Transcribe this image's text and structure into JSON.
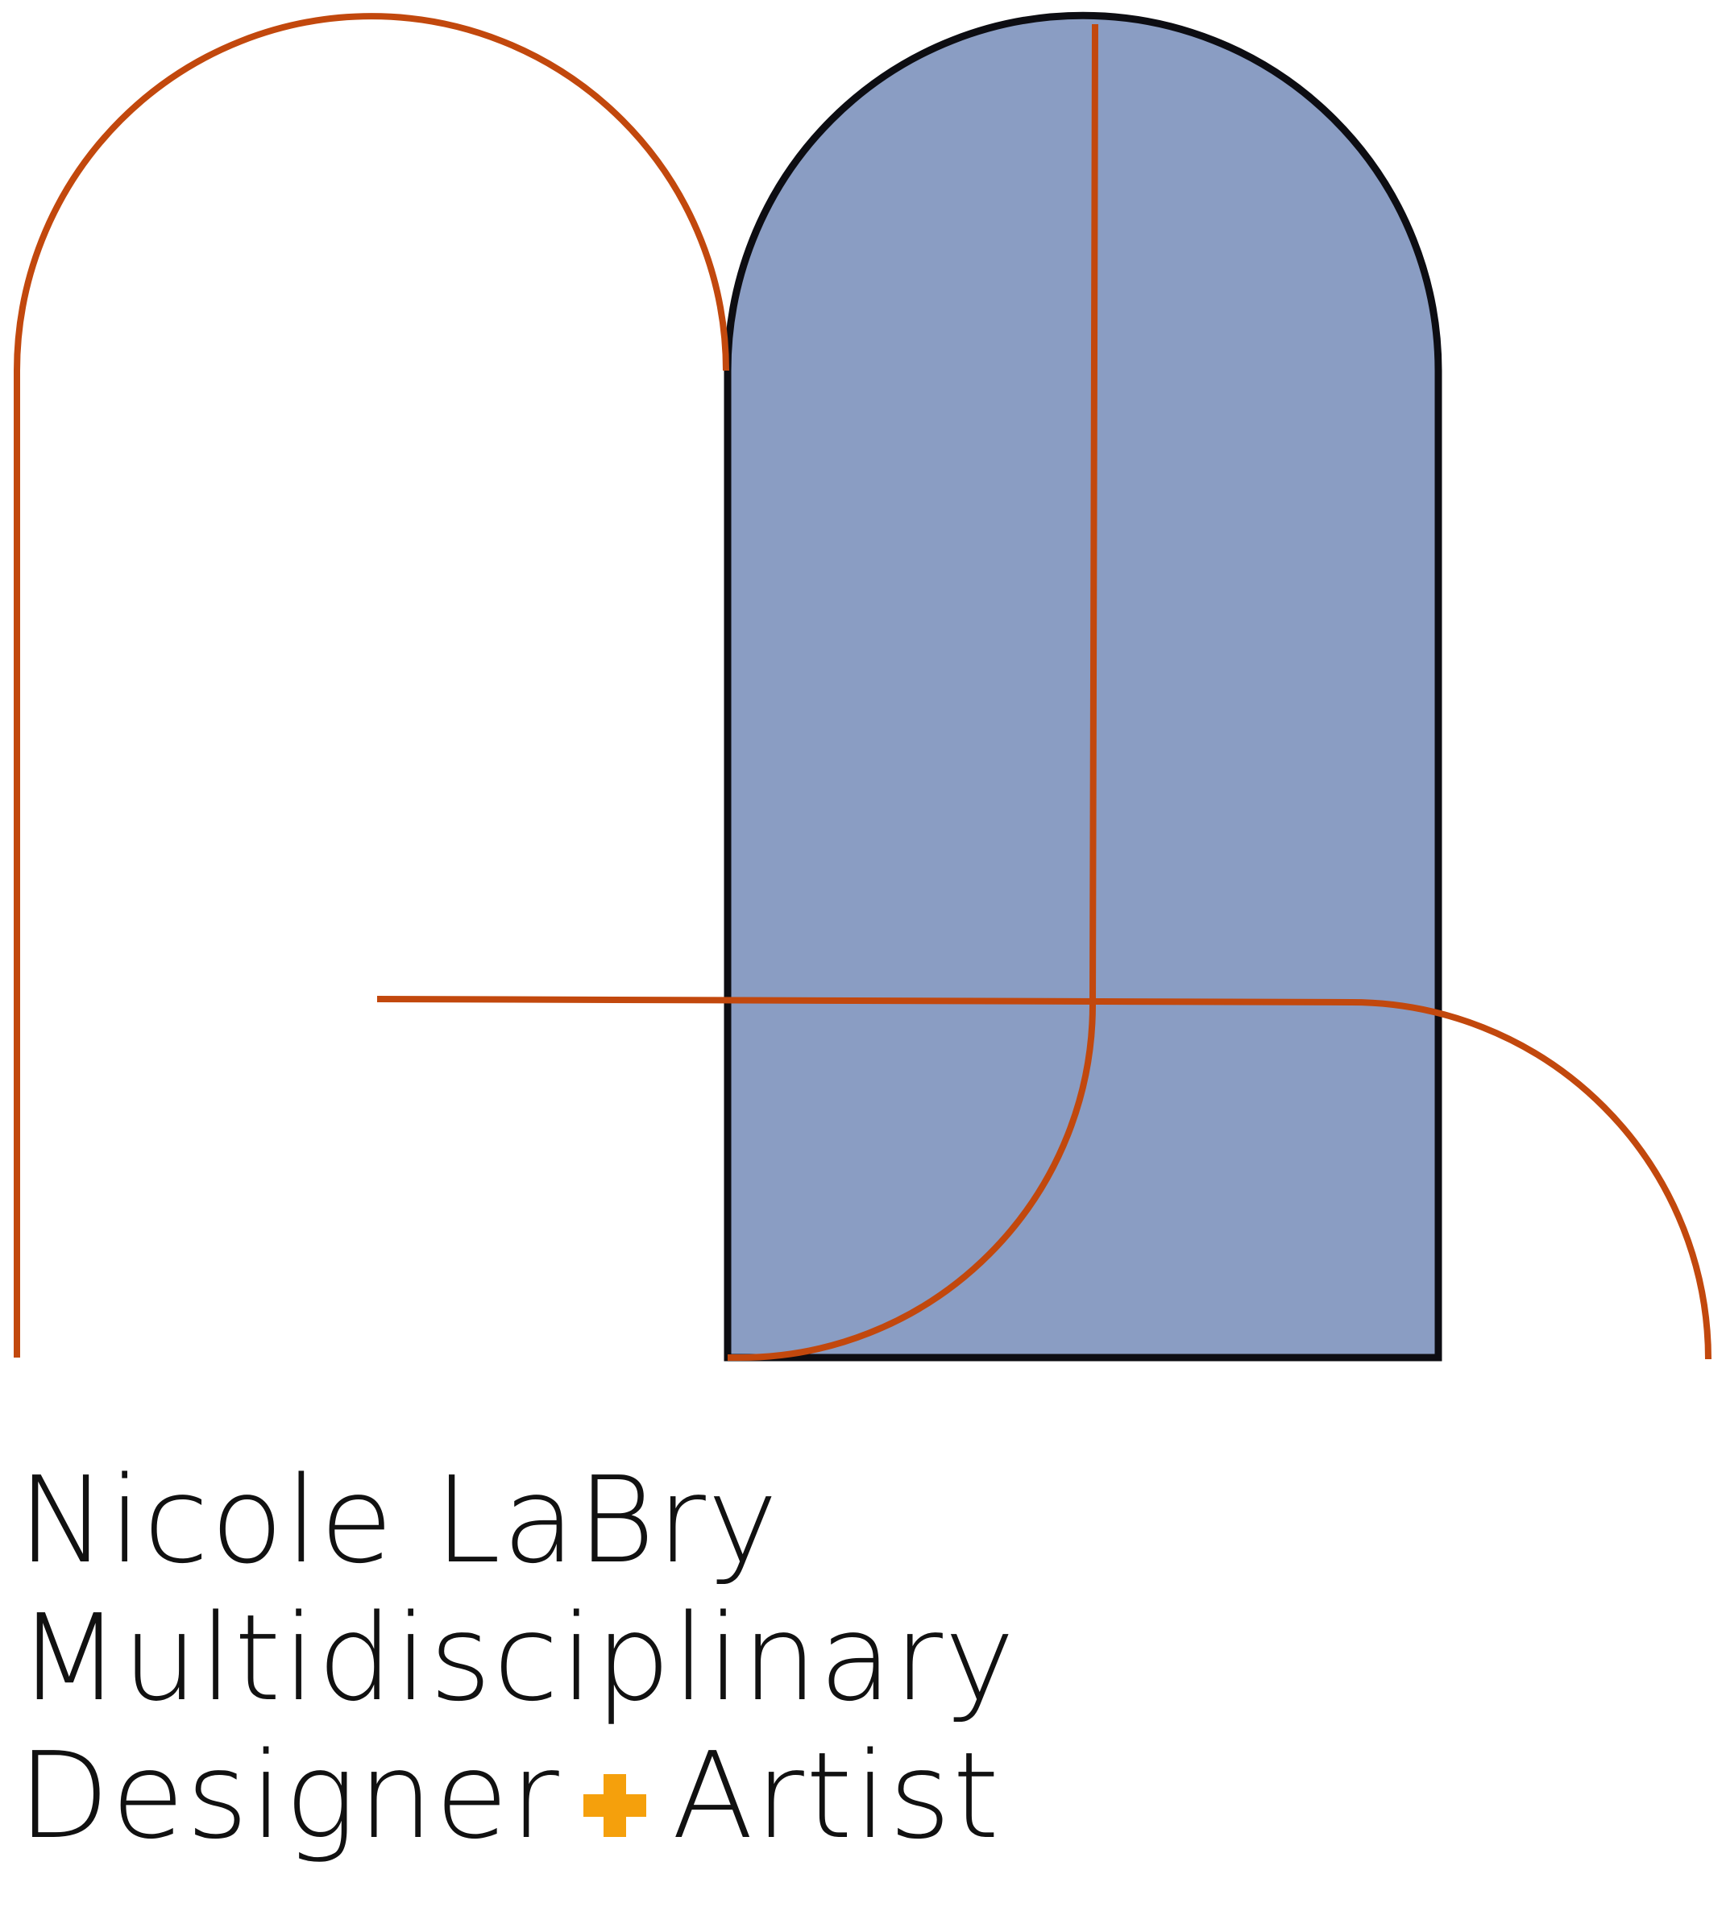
{
  "brand": {
    "name": "Nicole LaBry",
    "title_line_1": "Multidisciplinary",
    "title_line_2_part_1": "Designer",
    "title_line_2_part_2": "Artist",
    "separator_icon": "plus-icon"
  },
  "colors": {
    "arch_fill": "#8a9dc3",
    "arch_outline": "#0d0d12",
    "line_accent": "#c2480d",
    "plus_accent": "#f5a00c",
    "text": "#111111",
    "background": "#ffffff"
  }
}
